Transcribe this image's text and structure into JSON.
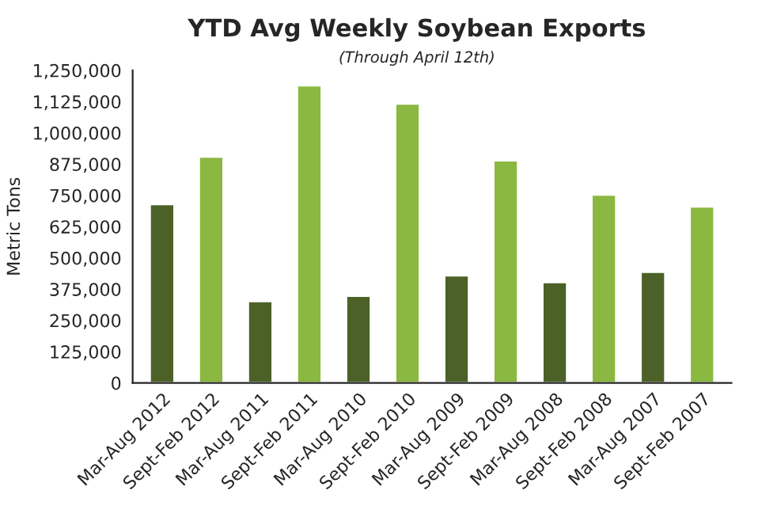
{
  "chart_data": {
    "type": "bar",
    "title": "YTD Avg Weekly Soybean Exports",
    "subtitle": "(Through April 12th)",
    "ylabel": "Metric Tons",
    "categories": [
      "Mar-Aug 2012",
      "Sept-Feb 2012",
      "Mar-Aug 2011",
      "Sept-Feb 2011",
      "Mar-Aug 2010",
      "Sept-Feb 2010",
      "Mar-Aug 2009",
      "Sept-Feb 2009",
      "Mar-Aug 2008",
      "Sept-Feb 2008",
      "Mar-Aug 2007",
      "Sept-Feb 2007"
    ],
    "values": [
      715000,
      905000,
      327000,
      1190000,
      348000,
      1117000,
      430000,
      890000,
      403000,
      753000,
      444000,
      705000
    ],
    "colors": [
      "#4b6127",
      "#8ab840",
      "#4b6127",
      "#8ab840",
      "#4b6127",
      "#8ab840",
      "#4b6127",
      "#8ab840",
      "#4b6127",
      "#8ab840",
      "#4b6127",
      "#8ab840"
    ],
    "ylim": [
      0,
      1250000
    ],
    "yticks": [
      0,
      {
        "value": 125000,
        "label": "125,000"
      },
      {
        "value": 250000,
        "label": "250,000"
      },
      {
        "value": 375000,
        "label": "375,000"
      },
      {
        "value": 500000,
        "label": "500,000"
      },
      {
        "value": 625000,
        "label": "625,000"
      },
      {
        "value": 750000,
        "label": "750,000"
      },
      {
        "value": 875000,
        "label": "875,000"
      },
      {
        "value": 1000000,
        "label": "1,000,000"
      },
      {
        "value": 1125000,
        "label": "1,125,000"
      },
      {
        "value": 1250000,
        "label": "1,250,000"
      }
    ]
  }
}
